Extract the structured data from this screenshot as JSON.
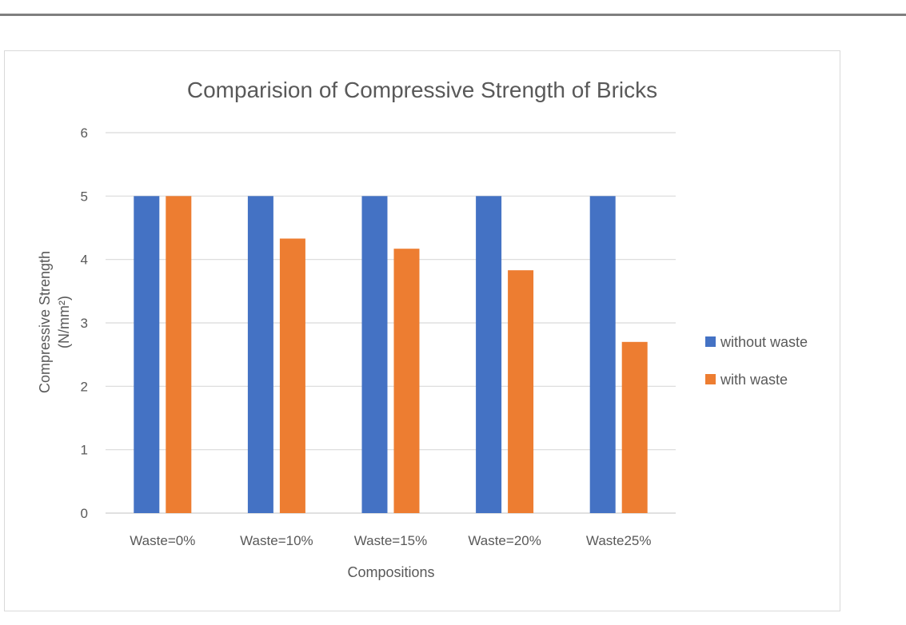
{
  "chart_data": {
    "type": "bar",
    "title": "Comparision of Compressive Strength of Bricks",
    "xlabel": "Compositions",
    "ylabel_line1": "Compressive Strength",
    "ylabel_line2": "(N/mm²)",
    "categories": [
      "Waste=0%",
      "Waste=10%",
      "Waste=15%",
      "Waste=20%",
      "Waste25%"
    ],
    "series": [
      {
        "name": "without waste",
        "color": "#4472c4",
        "values": [
          5,
          5,
          5,
          5,
          5
        ]
      },
      {
        "name": "with waste",
        "color": "#ed7d31",
        "values": [
          5,
          4.33,
          4.17,
          3.83,
          2.7
        ]
      }
    ],
    "ylim": [
      0,
      6
    ],
    "yticks": [
      "0",
      "1",
      "2",
      "3",
      "4",
      "5",
      "6"
    ],
    "grid": true,
    "legend_position": "right"
  }
}
